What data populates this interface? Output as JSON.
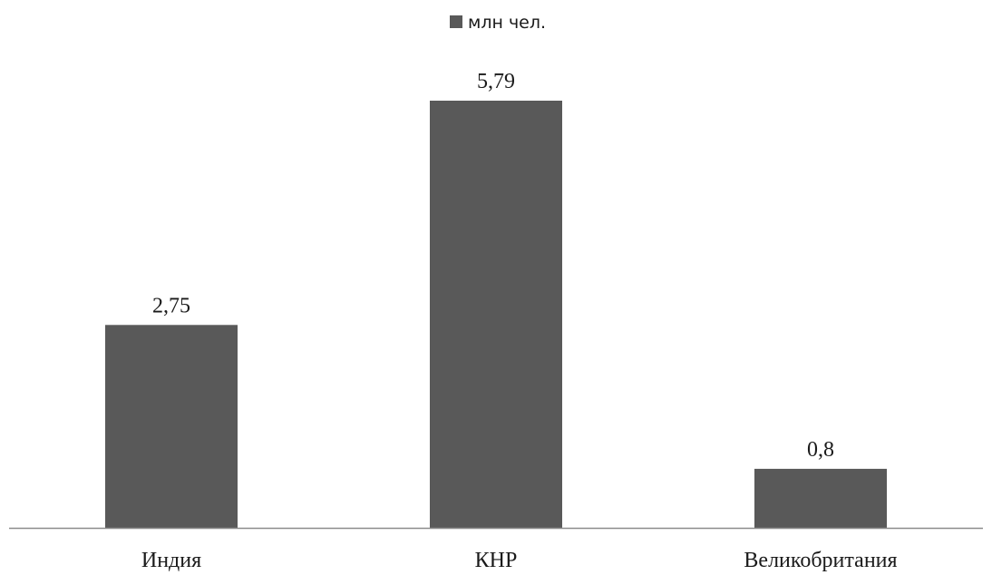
{
  "chart_data": {
    "type": "bar",
    "categories": [
      "Индия",
      "КНР",
      "Великобритания"
    ],
    "series": [
      {
        "name": "млн  чел.",
        "values": [
          2.75,
          5.79,
          0.8
        ],
        "labels": [
          "2,75",
          "5,79",
          "0,8"
        ]
      }
    ],
    "ylim": [
      0,
      5.79
    ],
    "grid": false,
    "legend": "top-center",
    "colors": {
      "bar": "#595959",
      "axis": "#8c8c8c"
    }
  }
}
